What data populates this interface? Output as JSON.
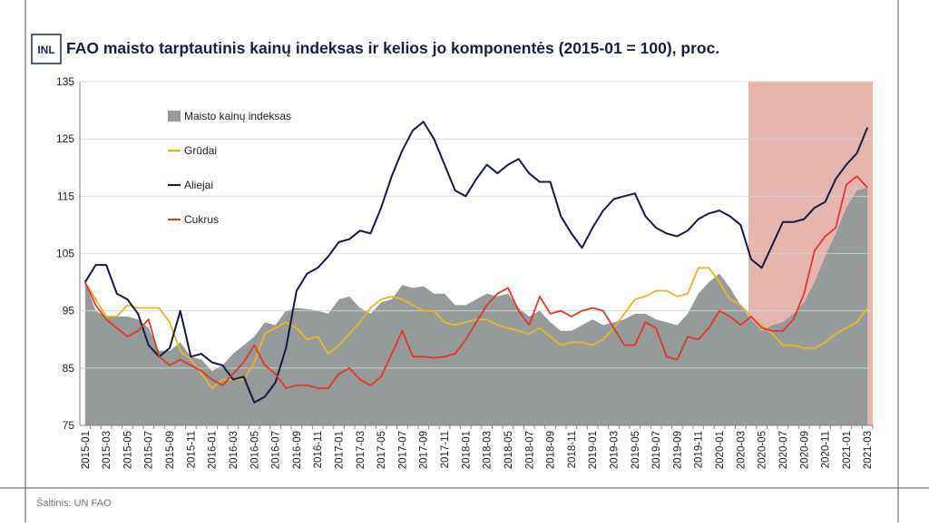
{
  "logo": "INL",
  "source": "Šaltinis: UN FAO",
  "chart_data": {
    "type": "line",
    "title": "FAO maisto tarptautinis kainų indeksas ir kelios jo komponentės (2015-01 = 100), proc.",
    "categories": [
      "2015-01",
      null,
      "2015-03",
      null,
      "2015-05",
      null,
      "2015-07",
      null,
      "2015-09",
      null,
      "2015-11",
      null,
      "2016-01",
      null,
      "2016-03",
      null,
      "2016-05",
      null,
      "2016-07",
      null,
      "2016-09",
      null,
      "2016-11",
      null,
      "2017-01",
      null,
      "2017-03",
      null,
      "2017-05",
      null,
      "2017-07",
      null,
      "2017-09",
      null,
      "2017-11",
      null,
      "2018-01",
      null,
      "2018-03",
      null,
      "2018-05",
      null,
      "2018-07",
      null,
      "2018-09",
      null,
      "2018-11",
      null,
      "2019-01",
      null,
      "2019-03",
      null,
      "2019-05",
      null,
      "2019-07",
      null,
      "2019-09",
      null,
      "2019-11",
      null,
      "2020-01",
      null,
      "2020-03",
      null,
      "2020-05",
      null,
      "2020-07",
      null,
      "2020-09",
      null,
      "2020-11",
      null,
      "2021-01",
      null,
      "2021-03"
    ],
    "series": [
      {
        "name": "Maisto kainų indeksas",
        "color": "#959a9a",
        "style": "area",
        "values": [
          100,
          95,
          94,
          94,
          94,
          93.5,
          92,
          88,
          88,
          89.5,
          87,
          86.5,
          84.5,
          85.5,
          87.5,
          89,
          90.5,
          93,
          92.5,
          95,
          95.5,
          95.3,
          95,
          94.5,
          97,
          97.5,
          95.5,
          94.5,
          96.5,
          97,
          99.5,
          99,
          99.3,
          98,
          98,
          96,
          96,
          97,
          98,
          97.5,
          98,
          95.5,
          94,
          95,
          93,
          91.5,
          91.5,
          92.5,
          93.5,
          92.5,
          93,
          93.5,
          94.5,
          94.5,
          93.5,
          93,
          92.5,
          94.5,
          98,
          100,
          101.5,
          99,
          96,
          93.5,
          91.5,
          92.5,
          93,
          94.5,
          96.5,
          100,
          104.5,
          108.5,
          113,
          116,
          116.5
        ]
      },
      {
        "name": "Grūdai",
        "color": "#e8b625",
        "style": "line",
        "values": [
          100,
          97,
          94,
          94,
          96,
          95.5,
          95.5,
          95.5,
          93,
          88,
          86.5,
          84,
          81.5,
          83,
          83,
          83,
          86,
          91,
          92,
          93,
          92,
          90,
          90.5,
          87.5,
          89,
          91,
          93,
          95.5,
          97,
          97.5,
          97,
          96,
          95,
          95,
          93,
          92.5,
          93,
          93.5,
          93.5,
          92.5,
          92,
          91.5,
          91,
          92,
          90.5,
          89,
          89.5,
          89.5,
          89,
          90,
          92,
          94.5,
          97,
          97.5,
          98.5,
          98.5,
          97.5,
          98,
          102.5,
          102.5,
          100,
          97,
          96,
          94,
          92.5,
          91,
          89,
          89,
          88.5,
          88.5,
          89.5,
          91,
          92,
          93,
          95.5
        ]
      },
      {
        "name": "Aliejai",
        "color": "#141b44",
        "style": "line",
        "values": [
          100,
          103,
          103,
          98,
          97,
          94.5,
          89,
          87,
          88.5,
          95,
          87,
          87.5,
          86,
          85.5,
          83,
          83.5,
          79,
          80,
          82.5,
          88.5,
          98.5,
          101.5,
          102.5,
          104.5,
          107,
          107.5,
          109,
          108.5,
          113,
          118.5,
          123,
          126.5,
          128,
          125,
          120.5,
          116,
          115,
          118,
          120.5,
          119,
          120.5,
          121.5,
          119,
          117.5,
          117.5,
          111.5,
          108.5,
          106,
          109.5,
          112.5,
          114.5,
          115,
          115.5,
          111.5,
          109.5,
          108.5,
          108,
          109,
          111,
          112,
          112.5,
          111.5,
          110,
          104,
          102.5,
          106.5,
          110.5,
          110.5,
          111,
          113,
          114,
          118,
          120.5,
          122.5,
          127
        ]
      },
      {
        "name": "Cukrus",
        "color": "#e0382a",
        "style": "line",
        "values": [
          100,
          96,
          93.5,
          92,
          90.5,
          91.5,
          93.5,
          87,
          85.5,
          86.5,
          85.5,
          84.5,
          83,
          82,
          84,
          86,
          89,
          85.5,
          84,
          81.5,
          82,
          82,
          81.5,
          81.5,
          84,
          85,
          83,
          82,
          83.5,
          87.5,
          91.5,
          87,
          87,
          86.8,
          87,
          87.5,
          90,
          93,
          96,
          98,
          99,
          95,
          92.5,
          97.5,
          94.5,
          95,
          94,
          95,
          95.5,
          95,
          92,
          89,
          89,
          93,
          92,
          87,
          86.5,
          90.5,
          90,
          92,
          95,
          94,
          92.5,
          94,
          92,
          91.5,
          91.5,
          93.5,
          98,
          105.5,
          108,
          109.5,
          117,
          118.5,
          116.5
        ]
      }
    ],
    "ylim": [
      75,
      135
    ],
    "yticks": [
      75,
      85,
      95,
      105,
      115,
      125,
      135
    ],
    "grid": true,
    "legend": "upper left"
  }
}
